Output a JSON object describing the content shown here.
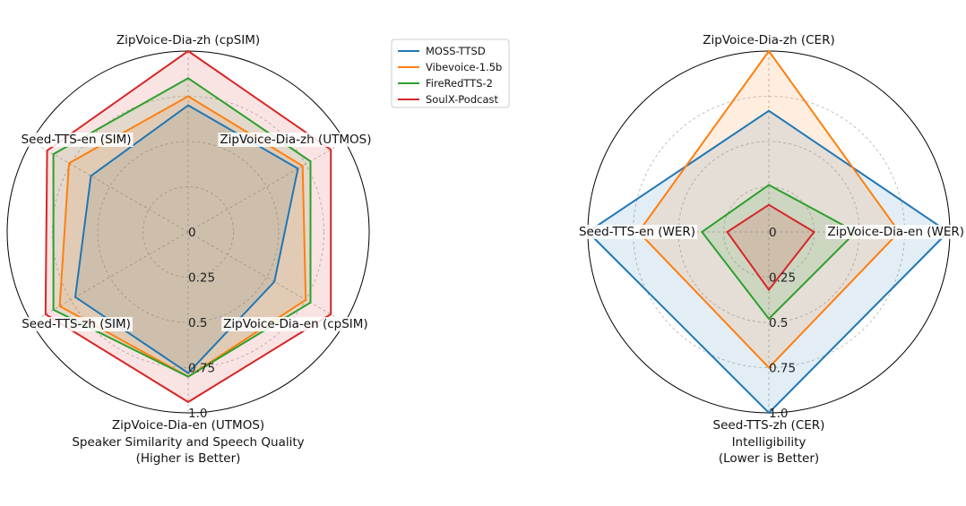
{
  "legend": {
    "entries": [
      "MOSS-TTSD",
      "Vibevoice-1.5b",
      "FireRedTTS-2",
      "SoulX-Podcast"
    ]
  },
  "chart_data": [
    {
      "type": "radar",
      "title": "Speaker Similarity and Speech Quality",
      "subtitle": "(Higher is Better)",
      "axes": [
        "ZipVoice-Dia-zh (cpSIM)",
        "ZipVoice-Dia-zh (UTMOS)",
        "ZipVoice-Dia-en (cpSIM)",
        "ZipVoice-Dia-en (UTMOS)",
        "Seed-TTS-zh (SIM)",
        "Seed-TTS-en (SIM)"
      ],
      "radial_ticks": [
        "0",
        "0.25",
        "0.5",
        "0.75",
        "1.0"
      ],
      "rlim": [
        0,
        1
      ],
      "grid": true,
      "series": [
        {
          "name": "MOSS-TTSD",
          "color": "#1f77b4",
          "values": [
            0.7,
            0.7,
            0.55,
            0.78,
            0.72,
            0.62
          ]
        },
        {
          "name": "Vibevoice-1.5b",
          "color": "#ff7f0e",
          "values": [
            0.75,
            0.73,
            0.75,
            0.8,
            0.82,
            0.76
          ]
        },
        {
          "name": "FireRedTTS-2",
          "color": "#2ca02c",
          "values": [
            0.85,
            0.78,
            0.78,
            0.8,
            0.86,
            0.86
          ]
        },
        {
          "name": "SoulX-Podcast",
          "color": "#d62728",
          "values": [
            1.0,
            0.91,
            0.91,
            0.94,
            0.91,
            0.9
          ]
        }
      ]
    },
    {
      "type": "radar",
      "title": "Intelligibility",
      "subtitle": "(Lower is Better)",
      "axes": [
        "ZipVoice-Dia-zh (CER)",
        "ZipVoice-Dia-en (WER)",
        "Seed-TTS-zh (CER)",
        "Seed-TTS-en (WER)"
      ],
      "radial_ticks": [
        "0",
        "0.25",
        "0.5",
        "0.75",
        "1.0"
      ],
      "rlim": [
        0,
        1
      ],
      "grid": true,
      "series": [
        {
          "name": "MOSS-TTSD",
          "color": "#1f77b4",
          "values": [
            0.67,
            0.99,
            1.0,
            1.0
          ]
        },
        {
          "name": "Vibevoice-1.5b",
          "color": "#ff7f0e",
          "values": [
            1.0,
            0.72,
            0.75,
            0.72
          ]
        },
        {
          "name": "FireRedTTS-2",
          "color": "#2ca02c",
          "values": [
            0.26,
            0.48,
            0.48,
            0.37
          ]
        },
        {
          "name": "SoulX-Podcast",
          "color": "#d62728",
          "values": [
            0.15,
            0.25,
            0.32,
            0.23
          ]
        }
      ]
    }
  ]
}
